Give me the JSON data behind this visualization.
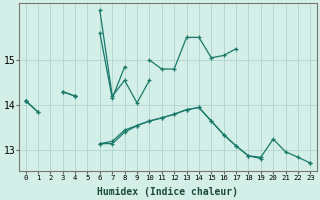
{
  "xlabel": "Humidex (Indice chaleur)",
  "bg_color": "#d4eee8",
  "grid_color": "#b0d4cc",
  "line_color": "#1a7a6a",
  "x_values": [
    0,
    1,
    2,
    3,
    4,
    5,
    6,
    7,
    8,
    9,
    10,
    11,
    12,
    13,
    14,
    15,
    16,
    17,
    18,
    19,
    20,
    21,
    22,
    23
  ],
  "series1": [
    14.1,
    13.85,
    null,
    14.3,
    14.2,
    null,
    15.6,
    14.15,
    14.85,
    null,
    15.0,
    14.8,
    14.8,
    15.5,
    15.5,
    15.05,
    15.1,
    15.25,
    null,
    null,
    null,
    null,
    null,
    null
  ],
  "series2": [
    14.1,
    13.85,
    null,
    14.3,
    14.2,
    null,
    16.1,
    14.2,
    14.55,
    14.05,
    14.55,
    null,
    null,
    null,
    null,
    null,
    null,
    null,
    null,
    null,
    null,
    null,
    null,
    null
  ],
  "series3": [
    14.1,
    null,
    null,
    null,
    14.2,
    null,
    13.15,
    13.15,
    13.4,
    13.55,
    13.65,
    13.72,
    13.8,
    13.9,
    13.95,
    13.65,
    13.35,
    13.1,
    12.88,
    12.85,
    13.25,
    12.97,
    12.85,
    12.72
  ],
  "series4": [
    14.1,
    null,
    null,
    null,
    14.2,
    null,
    13.15,
    13.2,
    13.45,
    13.55,
    13.65,
    13.72,
    13.8,
    13.9,
    13.95,
    13.65,
    13.35,
    13.1,
    12.88,
    12.82,
    null,
    null,
    null,
    12.72
  ],
  "ylim": [
    12.55,
    16.25
  ],
  "yticks": [
    13,
    14,
    15
  ],
  "xticks": [
    0,
    1,
    2,
    3,
    4,
    5,
    6,
    7,
    8,
    9,
    10,
    11,
    12,
    13,
    14,
    15,
    16,
    17,
    18,
    19,
    20,
    21,
    22,
    23
  ]
}
